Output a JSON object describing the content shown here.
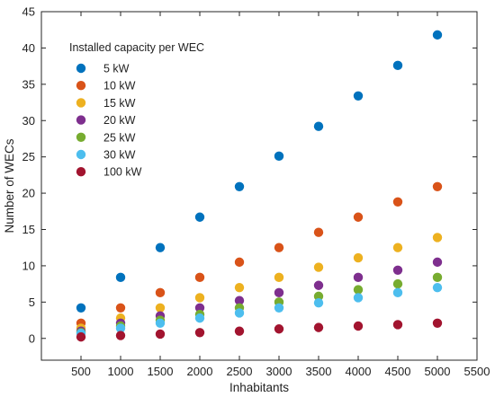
{
  "chart_data": {
    "type": "scatter",
    "title": "",
    "xlabel": "Inhabitants",
    "ylabel": "Number of WECs",
    "xlim": [
      0,
      5500
    ],
    "ylim": [
      -3,
      45
    ],
    "xticks": [
      500,
      1000,
      1500,
      2000,
      2500,
      3000,
      3500,
      4000,
      4500,
      5000,
      5500
    ],
    "yticks": [
      0,
      5,
      10,
      15,
      20,
      25,
      30,
      35,
      40,
      45
    ],
    "grid": false,
    "legend_title": "Installed capacity per WEC",
    "legend_position": "top-left",
    "x": [
      500,
      1000,
      1500,
      2000,
      2500,
      3000,
      3500,
      4000,
      4500,
      5000
    ],
    "series": [
      {
        "name": "5 kW",
        "color": "#0072BD",
        "values": [
          4.2,
          8.4,
          12.5,
          16.7,
          20.9,
          25.1,
          29.2,
          33.4,
          37.6,
          41.8
        ]
      },
      {
        "name": "10 kW",
        "color": "#D95319",
        "values": [
          2.1,
          4.2,
          6.3,
          8.4,
          10.5,
          12.5,
          14.6,
          16.7,
          18.8,
          20.9
        ]
      },
      {
        "name": "15 kW",
        "color": "#EDB120",
        "values": [
          1.4,
          2.8,
          4.2,
          5.6,
          7.0,
          8.4,
          9.8,
          11.1,
          12.5,
          13.9
        ]
      },
      {
        "name": "20 kW",
        "color": "#7E2F8E",
        "values": [
          1.0,
          2.1,
          3.1,
          4.2,
          5.2,
          6.3,
          7.3,
          8.4,
          9.4,
          10.5
        ]
      },
      {
        "name": "25 kW",
        "color": "#77AC30",
        "values": [
          0.8,
          1.7,
          2.5,
          3.3,
          4.2,
          5.0,
          5.8,
          6.7,
          7.5,
          8.4
        ]
      },
      {
        "name": "30 kW",
        "color": "#4DBEEE",
        "values": [
          0.7,
          1.4,
          2.1,
          2.8,
          3.5,
          4.2,
          4.9,
          5.6,
          6.3,
          7.0
        ]
      },
      {
        "name": "100 kW",
        "color": "#A2142F",
        "values": [
          0.2,
          0.4,
          0.6,
          0.8,
          1.0,
          1.3,
          1.5,
          1.7,
          1.9,
          2.1
        ]
      }
    ]
  }
}
